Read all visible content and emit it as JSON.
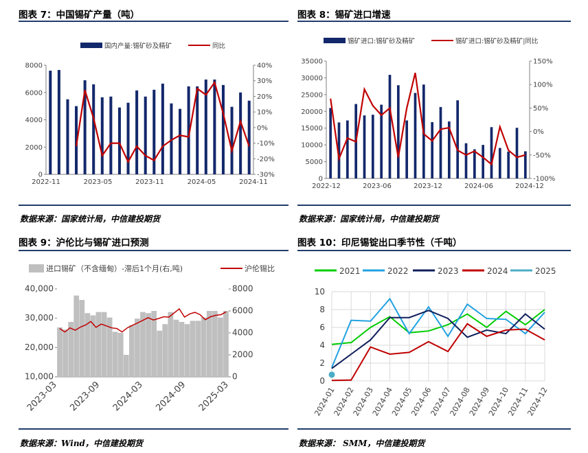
{
  "panels": {
    "p7": {
      "title": "图表 7：中国锡矿产量（吨）",
      "source": "数据来源：国家统计局，中信建投期货"
    },
    "p8": {
      "title": "图表 8：锡矿进口增速",
      "source": "数据来源：国家统计局，中信建投期货"
    },
    "p9": {
      "title": "图表 9：沪伦比与锡矿进口预测",
      "source": "数据来源：Wind，中信建投期货"
    },
    "p10": {
      "title": "图表 10：印尼锡锭出口季节性（千吨）",
      "source": "数据来源： SMM，中信建投期货"
    }
  },
  "chart_data": [
    {
      "id": "chart7",
      "type": "bar",
      "title": "",
      "legend": [
        "国内产量:锡矿砂及精矿",
        "同比"
      ],
      "legend_position": "top-center",
      "x_ticks": [
        "2022-11",
        "2023-05",
        "2023-11",
        "2024-05",
        "2024-11"
      ],
      "y_left": {
        "range": [
          0,
          8000
        ],
        "ticks": [
          "0",
          "2000",
          "4000",
          "6000",
          "8000"
        ]
      },
      "y_right": {
        "range": [
          -30,
          40
        ],
        "ticks": [
          "-30%",
          "-20%",
          "-10%",
          "0%",
          "10%",
          "20%",
          "30%",
          "40%"
        ]
      },
      "grid": false,
      "colors": {
        "bar": "#13286b",
        "line": "#c00000"
      },
      "series": [
        {
          "name": "国内产量:锡矿砂及精矿",
          "kind": "bar",
          "values": [
            7600,
            7650,
            5500,
            5000,
            6900,
            6600,
            5650,
            5700,
            4900,
            5250,
            6150,
            5700,
            6200,
            6650,
            5200,
            4800,
            6450,
            6450,
            6950,
            6950,
            6550,
            4950,
            6000,
            5400
          ]
        },
        {
          "name": "同比",
          "kind": "line",
          "values": [
            null,
            null,
            null,
            -12,
            24,
            6,
            -18,
            -10,
            -10,
            -22,
            -12,
            -18,
            -21,
            -12,
            -8,
            -5,
            -6,
            25,
            21,
            29,
            9,
            -15,
            4,
            -12
          ]
        }
      ]
    },
    {
      "id": "chart8",
      "type": "bar",
      "title": "",
      "legend": [
        "锡矿进口:锡矿砂及精矿",
        "锡矿进口:锡矿砂及精矿|同比"
      ],
      "legend_position": "top-center",
      "x_ticks": [
        "2022-12",
        "2023-06",
        "2023-12",
        "2024-06",
        "2024-12"
      ],
      "y_left": {
        "range": [
          0,
          35000
        ],
        "ticks": [
          "0",
          "5000",
          "10000",
          "15000",
          "20000",
          "25000",
          "30000",
          "35000"
        ]
      },
      "y_right": {
        "range": [
          -100,
          150
        ],
        "ticks": [
          "-100%",
          "-50%",
          "0%",
          "50%",
          "100%",
          "150%"
        ]
      },
      "grid": false,
      "colors": {
        "bar": "#13286b",
        "line": "#c00000"
      },
      "series": [
        {
          "name": "锡矿进口:锡矿砂及精矿",
          "kind": "bar",
          "values": [
            21000,
            16700,
            17300,
            22200,
            18800,
            19000,
            22000,
            30900,
            27800,
            17300,
            25500,
            28000,
            16800,
            21300,
            17000,
            23300,
            10500,
            8700,
            10000,
            15300,
            9100,
            8000,
            15100,
            8100
          ]
        },
        {
          "name": "锡矿进口:锡矿砂及精矿|同比",
          "kind": "line",
          "values": [
            70,
            -58,
            -14,
            -22,
            90,
            55,
            35,
            50,
            -55,
            50,
            125,
            -5,
            -20,
            5,
            8,
            -40,
            -50,
            -42,
            -55,
            -70,
            10,
            -40,
            -55,
            -50
          ]
        }
      ]
    },
    {
      "id": "chart9",
      "type": "bar",
      "title": "",
      "legend": [
        "进口锡矿（不含缅甸）-滞后1个月(右,吨)",
        "沪伦锡比"
      ],
      "legend_position": "top-center",
      "x_ticks": [
        "2023-03",
        "2023-09",
        "2024-03",
        "2024-09",
        "2025-03"
      ],
      "y_left": {
        "range": [
          10000,
          40000
        ],
        "ticks": [
          "10,000",
          "20,000",
          "30,000",
          "40,000"
        ]
      },
      "y_right": {
        "range": [
          0,
          8000
        ],
        "ticks": [
          "0",
          "2000",
          "4000",
          "6000",
          "8000"
        ]
      },
      "grid": false,
      "colors": {
        "bar": "#bfbfbf",
        "line": "#c00000"
      },
      "series": [
        {
          "name": "进口锡矿（不含缅甸）-滞后1个月(右,吨)",
          "kind": "bar",
          "values": [
            4500,
            4300,
            5000,
            7400,
            7000,
            5800,
            5600,
            5900,
            5900,
            5400,
            4100,
            4000,
            2000,
            4700,
            5300,
            5900,
            5800,
            6000,
            4200,
            4800,
            5900,
            5200,
            5000,
            4800,
            5100,
            5100,
            5400,
            6000,
            6000,
            5400,
            6000
          ]
        },
        {
          "name": "沪伦锡比",
          "kind": "line",
          "values": [
            26500,
            25300,
            26700,
            25900,
            27000,
            27700,
            28900,
            26900,
            28000,
            27400,
            26700,
            26500,
            25300,
            26700,
            27600,
            28400,
            29300,
            30200,
            29400,
            29900,
            30500,
            30400,
            31800,
            33200,
            30400,
            31500,
            32000,
            31200,
            29500,
            30500,
            31000,
            31200,
            32200
          ]
        }
      ]
    },
    {
      "id": "chart10",
      "type": "line",
      "title": "",
      "legend": [
        "2021",
        "2022",
        "2023",
        "2024",
        "2025"
      ],
      "legend_position": "top",
      "categories": [
        "2024-01",
        "2024-02",
        "2024-03",
        "2024-04",
        "2024-05",
        "2024-06",
        "2024-07",
        "2024-08",
        "2024-09",
        "2024-10",
        "2024-11",
        "2024-12"
      ],
      "y_left": {
        "range": [
          0,
          10
        ],
        "ticks": [
          "0",
          "2",
          "4",
          "6",
          "8",
          "10"
        ]
      },
      "grid": true,
      "series": [
        {
          "name": "2021",
          "color": "#00cc00",
          "values": [
            4.1,
            4.3,
            6.0,
            7.2,
            5.4,
            5.6,
            6.3,
            7.5,
            6.0,
            7.8,
            6.3,
            8.0
          ]
        },
        {
          "name": "2022",
          "color": "#21a1e1",
          "values": [
            1.5,
            6.8,
            6.7,
            9.2,
            5.3,
            8.3,
            5.0,
            8.6,
            7.0,
            6.9,
            5.3,
            7.7
          ]
        },
        {
          "name": "2023",
          "color": "#0f1f5c",
          "values": [
            1.4,
            3.0,
            4.6,
            7.1,
            7.1,
            7.9,
            7.0,
            4.9,
            5.7,
            5.3,
            7.5,
            5.8
          ]
        },
        {
          "name": "2024",
          "color": "#c00000",
          "values": [
            0.05,
            0.1,
            3.8,
            3.0,
            3.2,
            4.4,
            3.3,
            6.4,
            5.0,
            5.7,
            5.8,
            4.6
          ]
        },
        {
          "name": "2025",
          "color": "#4bacc6",
          "values": [
            0.7,
            null,
            null,
            null,
            null,
            null,
            null,
            null,
            null,
            null,
            null,
            null
          ]
        }
      ]
    }
  ]
}
